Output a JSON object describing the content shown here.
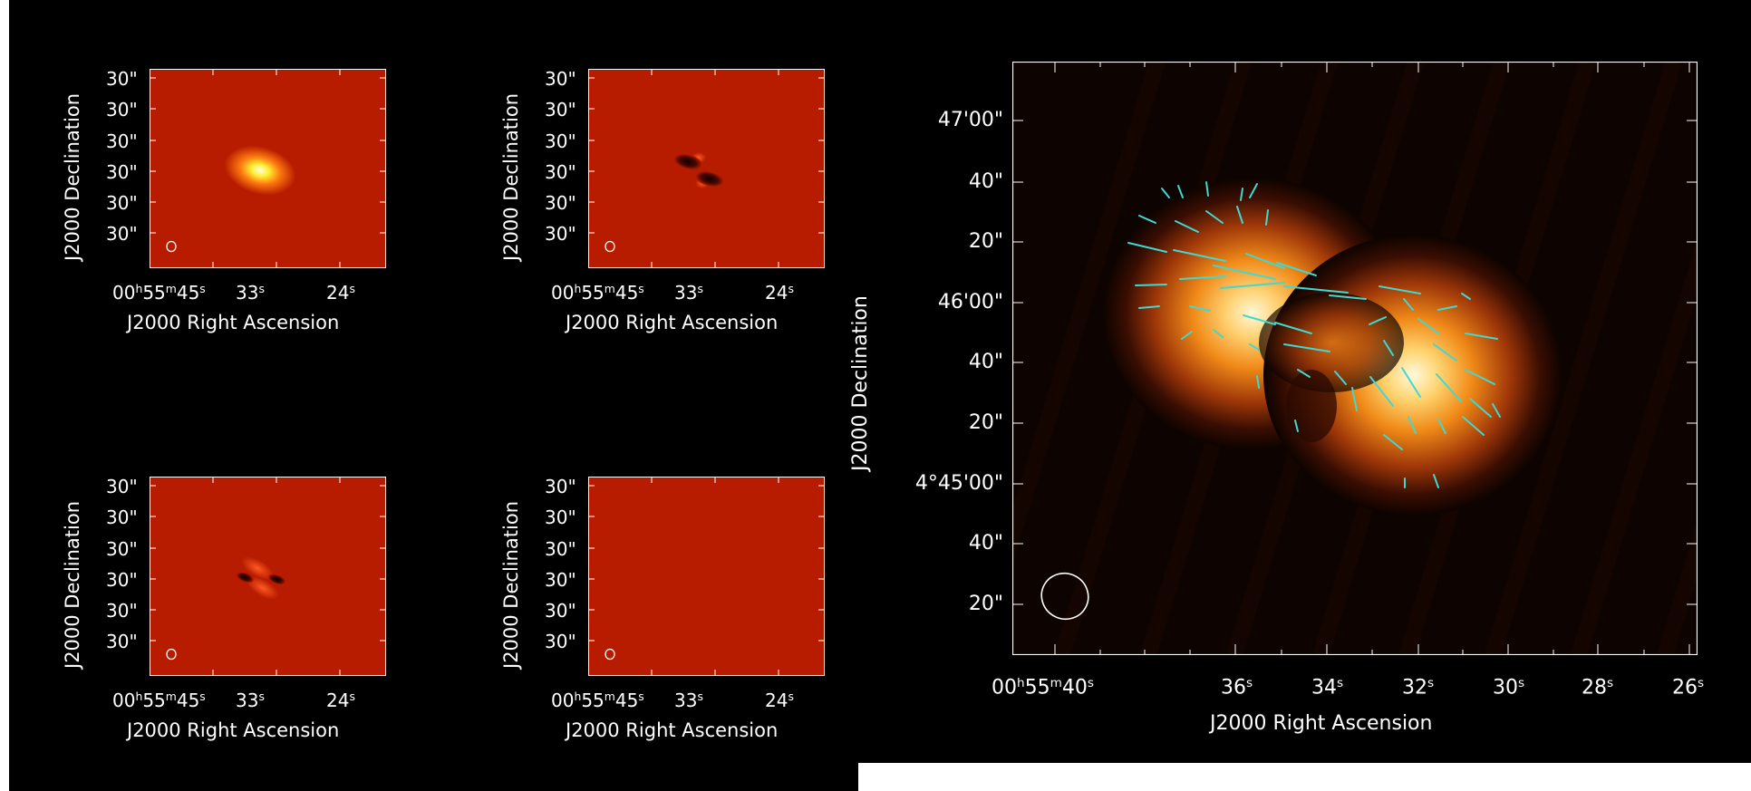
{
  "small_panels": [
    {
      "name": "panel-top-left",
      "y_ticks": [
        "30\"",
        "30\"",
        "30\"",
        "30\"",
        "30\"",
        "30\""
      ],
      "x_ticks": [
        "00h55m45s",
        "33s",
        "24s"
      ],
      "xlabel": "J2000 Right Ascension",
      "ylabel": "J2000 Declination",
      "content": "bright-source"
    },
    {
      "name": "panel-top-right",
      "y_ticks": [
        "30\"",
        "30\"",
        "30\"",
        "30\"",
        "30\"",
        "30\""
      ],
      "x_ticks": [
        "00h55m45s",
        "33s",
        "24s"
      ],
      "xlabel": "J2000 Right Ascension",
      "ylabel": "J2000 Declination",
      "content": "dipole-dark"
    },
    {
      "name": "panel-bottom-left",
      "y_ticks": [
        "30\"",
        "30\"",
        "30\"",
        "30\"",
        "30\"",
        "30\""
      ],
      "x_ticks": [
        "00h55m45s",
        "33s",
        "24s"
      ],
      "xlabel": "J2000 Right Ascension",
      "ylabel": "J2000 Declination",
      "content": "dipole-bright"
    },
    {
      "name": "panel-bottom-right",
      "y_ticks": [
        "30\"",
        "30\"",
        "30\"",
        "30\"",
        "30\"",
        "30\""
      ],
      "x_ticks": [
        "00h55m45s",
        "33s",
        "24s"
      ],
      "xlabel": "J2000 Right Ascension",
      "ylabel": "J2000 Declination",
      "content": "empty"
    }
  ],
  "large_panel": {
    "y_ticks": [
      "47'00\"",
      "40\"",
      "20\"",
      "46'00\"",
      "40\"",
      "20\"",
      "4°45'00\"",
      "40\"",
      "20\""
    ],
    "x_ticks": [
      "00h55m40s",
      "36s",
      "34s",
      "32s",
      "30s",
      "28s",
      "26s"
    ],
    "xlabel": "J2000 Right Ascension",
    "ylabel": "J2000 Declination"
  },
  "colors": {
    "background": "#000000",
    "map_red": "#b81c00",
    "vector": "#40d8d0",
    "axis": "#ffffff"
  }
}
